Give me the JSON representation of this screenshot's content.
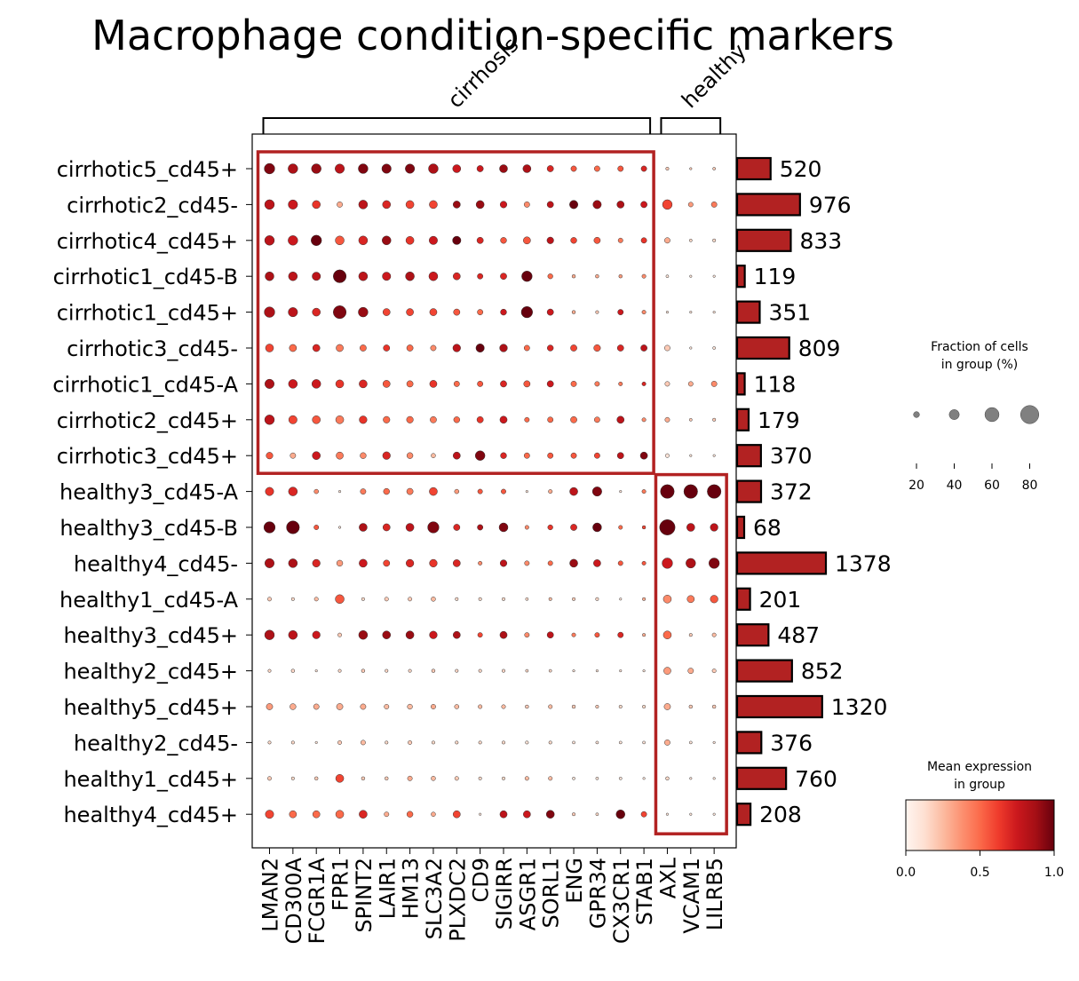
{
  "chart_data": {
    "type": "dotplot",
    "title": "Macrophage condition-specific markers",
    "var_groups": [
      {
        "label": "cirrhosis",
        "start": 0,
        "end": 16
      },
      {
        "label": "healthy",
        "start": 17,
        "end": 19
      }
    ],
    "genes": [
      "LMAN2",
      "CD300A",
      "FCGR1A",
      "FPR1",
      "SPINT2",
      "LAIR1",
      "HM13",
      "SLC3A2",
      "PLXDC2",
      "CD9",
      "SIGIRR",
      "ASGR1",
      "SORL1",
      "ENG",
      "GPR34",
      "CX3CR1",
      "STAB1",
      "AXL",
      "VCAM1",
      "LILRB5"
    ],
    "groups": [
      "cirrhotic5_cd45+",
      "cirrhotic2_cd45-",
      "cirrhotic4_cd45+",
      "cirrhotic1_cd45-B",
      "cirrhotic1_cd45+",
      "cirrhotic3_cd45-",
      "cirrhotic1_cd45-A",
      "cirrhotic2_cd45+",
      "cirrhotic3_cd45+",
      "healthy3_cd45-A",
      "healthy3_cd45-B",
      "healthy4_cd45-",
      "healthy1_cd45-A",
      "healthy3_cd45+",
      "healthy2_cd45+",
      "healthy5_cd45+",
      "healthy2_cd45-",
      "healthy1_cd45+",
      "healthy4_cd45+"
    ],
    "counts": [
      520,
      976,
      833,
      119,
      351,
      809,
      118,
      179,
      370,
      372,
      68,
      1378,
      201,
      487,
      852,
      1320,
      376,
      760,
      208
    ],
    "fraction_pct": [
      [
        55,
        50,
        50,
        48,
        50,
        48,
        48,
        50,
        40,
        30,
        40,
        40,
        30,
        25,
        25,
        25,
        25,
        10,
        5,
        8
      ],
      [
        50,
        48,
        40,
        25,
        45,
        40,
        40,
        40,
        35,
        40,
        32,
        25,
        30,
        42,
        42,
        35,
        30,
        50,
        20,
        25
      ],
      [
        50,
        50,
        55,
        45,
        45,
        45,
        40,
        42,
        42,
        30,
        28,
        35,
        32,
        28,
        30,
        20,
        25,
        25,
        8,
        10
      ],
      [
        45,
        45,
        42,
        70,
        45,
        42,
        45,
        45,
        35,
        25,
        30,
        55,
        22,
        12,
        12,
        12,
        15,
        8,
        5,
        5
      ],
      [
        55,
        48,
        40,
        70,
        50,
        35,
        35,
        35,
        30,
        25,
        28,
        60,
        30,
        12,
        10,
        25,
        15,
        5,
        5,
        5
      ],
      [
        40,
        35,
        35,
        35,
        30,
        30,
        30,
        25,
        38,
        42,
        38,
        25,
        28,
        30,
        32,
        30,
        30,
        25,
        5,
        8
      ],
      [
        48,
        45,
        45,
        40,
        40,
        35,
        30,
        35,
        25,
        25,
        30,
        30,
        30,
        25,
        20,
        15,
        15,
        20,
        20,
        25
      ],
      [
        50,
        42,
        40,
        40,
        38,
        32,
        32,
        30,
        28,
        30,
        35,
        20,
        25,
        30,
        25,
        35,
        15,
        20,
        8,
        10
      ],
      [
        32,
        25,
        40,
        35,
        28,
        38,
        28,
        18,
        35,
        50,
        28,
        25,
        25,
        25,
        25,
        30,
        35,
        15,
        5,
        5
      ],
      [
        42,
        45,
        18,
        5,
        25,
        28,
        30,
        40,
        18,
        20,
        20,
        5,
        15,
        40,
        48,
        5,
        15,
        75,
        75,
        75
      ],
      [
        60,
        70,
        20,
        5,
        40,
        35,
        40,
        60,
        30,
        25,
        45,
        15,
        22,
        30,
        45,
        15,
        12,
        85,
        40,
        38
      ],
      [
        48,
        45,
        38,
        28,
        40,
        30,
        38,
        38,
        35,
        15,
        32,
        20,
        20,
        40,
        35,
        20,
        15,
        55,
        50,
        55
      ],
      [
        15,
        10,
        15,
        45,
        10,
        15,
        15,
        18,
        10,
        10,
        10,
        8,
        10,
        10,
        10,
        5,
        10,
        40,
        35,
        38
      ],
      [
        50,
        45,
        38,
        15,
        45,
        40,
        40,
        38,
        35,
        20,
        35,
        20,
        30,
        15,
        20,
        25,
        10,
        40,
        10,
        15
      ],
      [
        10,
        12,
        5,
        10,
        12,
        10,
        10,
        12,
        10,
        10,
        10,
        8,
        8,
        5,
        5,
        5,
        5,
        35,
        25,
        15
      ],
      [
        30,
        28,
        25,
        30,
        25,
        20,
        22,
        20,
        18,
        15,
        15,
        12,
        15,
        12,
        10,
        10,
        10,
        30,
        12,
        12
      ],
      [
        10,
        10,
        5,
        15,
        20,
        10,
        15,
        10,
        10,
        10,
        10,
        10,
        10,
        8,
        8,
        8,
        8,
        25,
        8,
        5
      ],
      [
        15,
        10,
        12,
        40,
        12,
        12,
        20,
        18,
        15,
        10,
        10,
        15,
        15,
        8,
        8,
        8,
        5,
        12,
        5,
        5
      ],
      [
        42,
        35,
        35,
        40,
        40,
        20,
        28,
        18,
        35,
        5,
        35,
        35,
        40,
        10,
        8,
        45,
        25,
        5,
        5,
        5
      ]
    ],
    "mean_expression": [
      [
        0.95,
        0.85,
        0.9,
        0.8,
        0.95,
        0.95,
        0.95,
        0.85,
        0.75,
        0.75,
        0.9,
        0.85,
        0.7,
        0.55,
        0.5,
        0.55,
        0.7,
        0.2,
        0.2,
        0.2
      ],
      [
        0.8,
        0.75,
        0.65,
        0.3,
        0.8,
        0.7,
        0.6,
        0.6,
        0.9,
        0.9,
        0.75,
        0.4,
        0.8,
        1.0,
        0.9,
        0.85,
        0.75,
        0.6,
        0.35,
        0.45
      ],
      [
        0.8,
        0.75,
        1.0,
        0.55,
        0.7,
        0.9,
        0.65,
        0.75,
        1.0,
        0.7,
        0.55,
        0.55,
        0.8,
        0.6,
        0.55,
        0.45,
        0.65,
        0.3,
        0.15,
        0.15
      ],
      [
        0.85,
        0.8,
        0.8,
        1.0,
        0.8,
        0.75,
        0.85,
        0.75,
        0.7,
        0.7,
        0.7,
        1.0,
        0.5,
        0.3,
        0.3,
        0.35,
        0.4,
        0.1,
        0.1,
        0.1
      ],
      [
        0.85,
        0.8,
        0.7,
        0.95,
        0.9,
        0.6,
        0.6,
        0.6,
        0.55,
        0.5,
        0.75,
        1.0,
        0.75,
        0.3,
        0.2,
        0.75,
        0.4,
        0.1,
        0.1,
        0.1
      ],
      [
        0.6,
        0.5,
        0.7,
        0.45,
        0.5,
        0.65,
        0.5,
        0.4,
        0.8,
        1.0,
        0.85,
        0.5,
        0.7,
        0.6,
        0.55,
        0.7,
        0.8,
        0.2,
        0.1,
        0.1
      ],
      [
        0.85,
        0.75,
        0.75,
        0.65,
        0.7,
        0.55,
        0.5,
        0.65,
        0.5,
        0.55,
        0.7,
        0.55,
        0.75,
        0.5,
        0.45,
        0.45,
        0.7,
        0.2,
        0.3,
        0.4
      ],
      [
        0.8,
        0.6,
        0.55,
        0.45,
        0.65,
        0.5,
        0.5,
        0.45,
        0.5,
        0.65,
        0.75,
        0.5,
        0.5,
        0.5,
        0.45,
        0.8,
        0.4,
        0.3,
        0.2,
        0.2
      ],
      [
        0.55,
        0.3,
        0.75,
        0.45,
        0.4,
        0.7,
        0.4,
        0.25,
        0.8,
        0.95,
        0.7,
        0.5,
        0.55,
        0.55,
        0.6,
        0.8,
        0.95,
        0.1,
        0.1,
        0.1
      ],
      [
        0.65,
        0.7,
        0.4,
        0.1,
        0.45,
        0.5,
        0.45,
        0.6,
        0.35,
        0.55,
        0.55,
        0.1,
        0.3,
        0.8,
        0.95,
        0.1,
        0.45,
        1.0,
        1.0,
        1.0
      ],
      [
        1.0,
        1.0,
        0.55,
        0.1,
        0.85,
        0.7,
        0.8,
        0.95,
        0.7,
        0.85,
        0.95,
        0.4,
        0.65,
        0.7,
        1.0,
        0.5,
        0.6,
        1.0,
        0.8,
        0.8
      ],
      [
        0.85,
        0.85,
        0.7,
        0.35,
        0.75,
        0.6,
        0.7,
        0.65,
        0.7,
        0.4,
        0.8,
        0.4,
        0.5,
        0.9,
        0.75,
        0.55,
        0.55,
        0.75,
        0.85,
        0.95
      ],
      [
        0.2,
        0.15,
        0.25,
        0.55,
        0.15,
        0.2,
        0.2,
        0.25,
        0.15,
        0.15,
        0.15,
        0.15,
        0.25,
        0.2,
        0.15,
        0.1,
        0.3,
        0.4,
        0.45,
        0.55
      ],
      [
        0.85,
        0.8,
        0.75,
        0.2,
        0.9,
        0.9,
        0.9,
        0.75,
        0.85,
        0.6,
        0.85,
        0.4,
        0.8,
        0.45,
        0.55,
        0.7,
        0.3,
        0.5,
        0.2,
        0.25
      ],
      [
        0.15,
        0.15,
        0.1,
        0.15,
        0.2,
        0.15,
        0.15,
        0.2,
        0.15,
        0.15,
        0.15,
        0.15,
        0.15,
        0.1,
        0.1,
        0.1,
        0.1,
        0.35,
        0.3,
        0.2
      ],
      [
        0.35,
        0.3,
        0.3,
        0.3,
        0.3,
        0.25,
        0.25,
        0.3,
        0.25,
        0.25,
        0.25,
        0.2,
        0.25,
        0.2,
        0.2,
        0.15,
        0.15,
        0.3,
        0.2,
        0.2
      ],
      [
        0.15,
        0.15,
        0.1,
        0.2,
        0.25,
        0.15,
        0.2,
        0.15,
        0.15,
        0.15,
        0.15,
        0.1,
        0.15,
        0.1,
        0.1,
        0.1,
        0.1,
        0.3,
        0.1,
        0.1
      ],
      [
        0.2,
        0.15,
        0.2,
        0.6,
        0.2,
        0.2,
        0.3,
        0.25,
        0.2,
        0.15,
        0.15,
        0.25,
        0.25,
        0.1,
        0.1,
        0.1,
        0.1,
        0.15,
        0.1,
        0.1
      ],
      [
        0.6,
        0.5,
        0.5,
        0.5,
        0.7,
        0.3,
        0.5,
        0.3,
        0.6,
        0.1,
        0.8,
        0.75,
        0.95,
        0.2,
        0.15,
        1.0,
        0.6,
        0.1,
        0.1,
        0.1
      ]
    ],
    "size_legend": {
      "title": "Fraction of cells\nin group (%)",
      "ticks": [
        20,
        40,
        60,
        80
      ]
    },
    "color_legend": {
      "title": "Mean expression\nin group",
      "ticks": [
        "0.0",
        "0.5",
        "1.0"
      ],
      "colormap": "Reds",
      "range": [
        0,
        1
      ]
    },
    "bar_color": "#b22222",
    "highlight_color": "#b22222"
  }
}
